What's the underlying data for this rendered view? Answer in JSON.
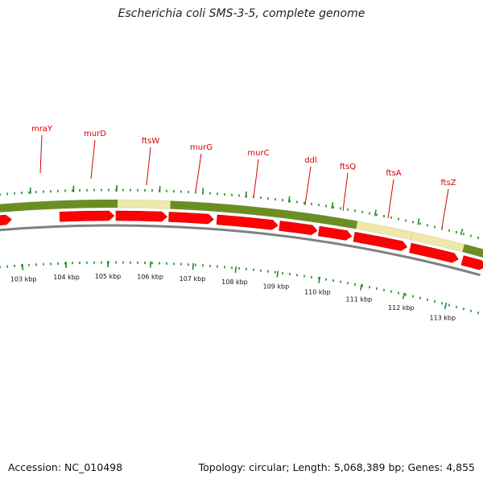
{
  "title": "Escherichia coli SMS-3-5, complete genome",
  "footer": {
    "accession": "Accession: NC_010498",
    "summary": "Topology: circular; Length: 5,068,389 bp; Genes: 4,855"
  },
  "colors": {
    "cds_dark": "#6b8e23",
    "cds_light": "#eee8aa",
    "gene_arrow": "#ff0000",
    "label": "#d40000",
    "backbone": "#808080",
    "tick": "#228b22"
  },
  "genes": [
    {
      "name": "mraY"
    },
    {
      "name": "murD"
    },
    {
      "name": "ftsW"
    },
    {
      "name": "murG"
    },
    {
      "name": "murC"
    },
    {
      "name": "ddl"
    },
    {
      "name": "ftsQ"
    },
    {
      "name": "ftsA"
    },
    {
      "name": "ftsZ"
    }
  ],
  "scale_labels": [
    "103 kbp",
    "104 kbp",
    "105 kbp",
    "106 kbp",
    "107 kbp",
    "108 kbp",
    "109 kbp",
    "110 kbp",
    "111 kbp",
    "112 kbp",
    "113 kbp"
  ]
}
